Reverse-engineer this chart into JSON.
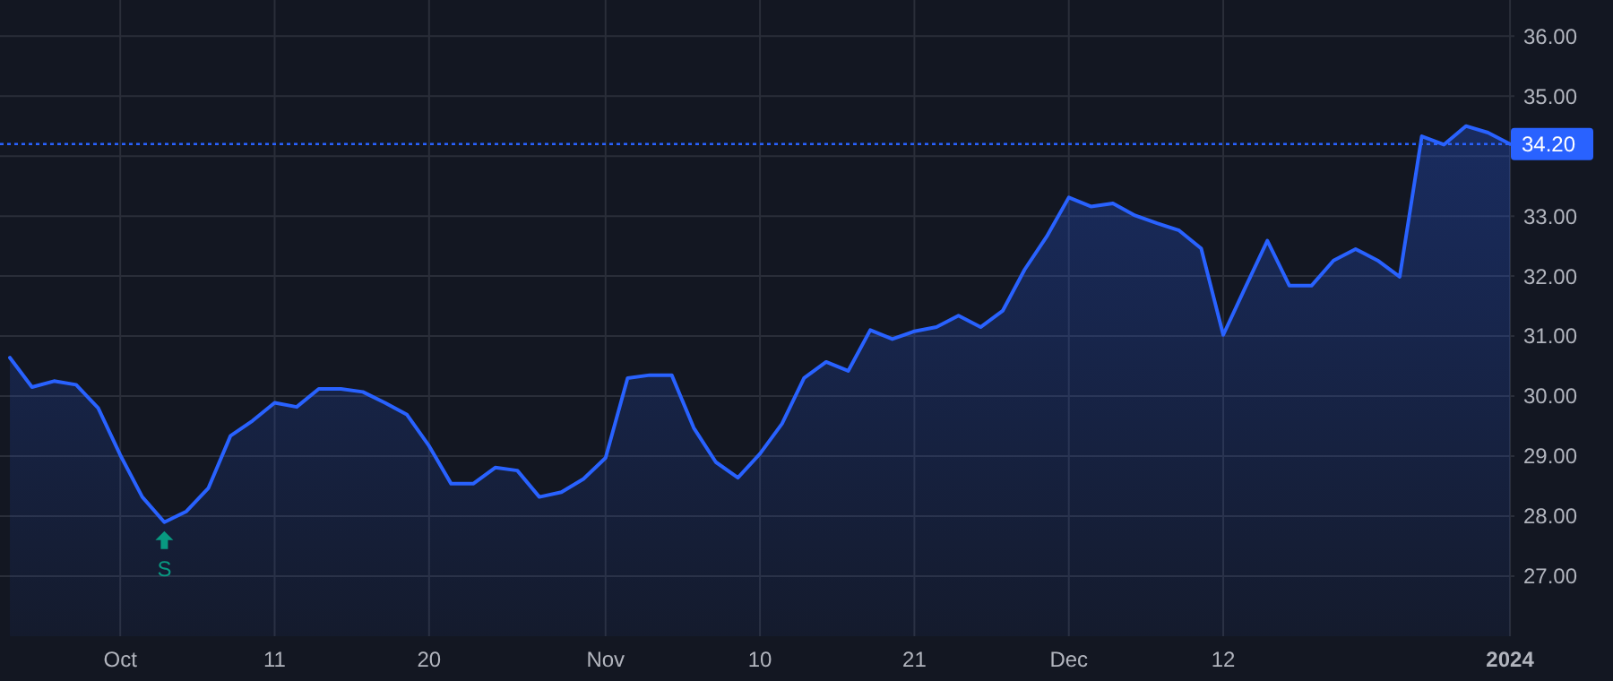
{
  "chart_data": {
    "type": "area",
    "categories": [
      null,
      null,
      null,
      null,
      null,
      "Oct",
      null,
      null,
      null,
      null,
      null,
      null,
      "11",
      null,
      null,
      null,
      null,
      null,
      null,
      "20",
      null,
      null,
      null,
      null,
      null,
      null,
      null,
      "Nov",
      null,
      null,
      null,
      null,
      null,
      null,
      "10",
      null,
      null,
      null,
      null,
      null,
      null,
      "21",
      null,
      null,
      null,
      null,
      null,
      null,
      "Dec",
      null,
      null,
      null,
      null,
      null,
      null,
      "12",
      null,
      null,
      null,
      null,
      null,
      null,
      null,
      null,
      null,
      null,
      null,
      null,
      "2024"
    ],
    "series": [
      {
        "color": "#2962ff",
        "values": [
          30.64,
          30.15,
          30.25,
          30.19,
          29.8,
          29.02,
          28.32,
          27.9,
          28.08,
          28.47,
          29.34,
          29.59,
          29.89,
          29.82,
          30.12,
          30.12,
          30.07,
          29.89,
          29.69,
          29.17,
          28.54,
          28.54,
          28.81,
          28.76,
          28.32,
          28.4,
          28.62,
          28.97,
          30.3,
          30.35,
          30.35,
          29.47,
          28.9,
          28.64,
          29.04,
          29.54,
          30.3,
          30.57,
          30.42,
          31.1,
          30.95,
          31.08,
          31.15,
          31.34,
          31.15,
          31.42,
          32.11,
          32.66,
          33.31,
          33.16,
          33.21,
          33.01,
          32.88,
          32.76,
          32.46,
          31.02,
          31.81,
          32.59,
          31.84,
          31.84,
          32.26,
          32.45,
          32.26,
          31.99,
          34.33,
          34.19,
          34.5,
          34.39,
          34.2
        ]
      }
    ],
    "ylim": [
      26,
      36.6
    ],
    "yticks": [
      {
        "value": 27,
        "label": "27.00"
      },
      {
        "value": 28,
        "label": "28.00"
      },
      {
        "value": 29,
        "label": "29.00"
      },
      {
        "value": 30,
        "label": "30.00"
      },
      {
        "value": 31,
        "label": "31.00"
      },
      {
        "value": 32,
        "label": "32.00"
      },
      {
        "value": 33,
        "label": "33.00"
      },
      {
        "value": 34,
        "label": null
      },
      {
        "value": 35,
        "label": "35.00"
      },
      {
        "value": 36,
        "label": "36.00"
      }
    ],
    "grid": true,
    "ref_lines": [
      {
        "axis": "y",
        "value": 34.2,
        "label": "34.20",
        "color": "#2962ff",
        "line_style": "dotted"
      }
    ],
    "annotations": [
      {
        "text": "S",
        "y": 27.9
      }
    ]
  }
}
